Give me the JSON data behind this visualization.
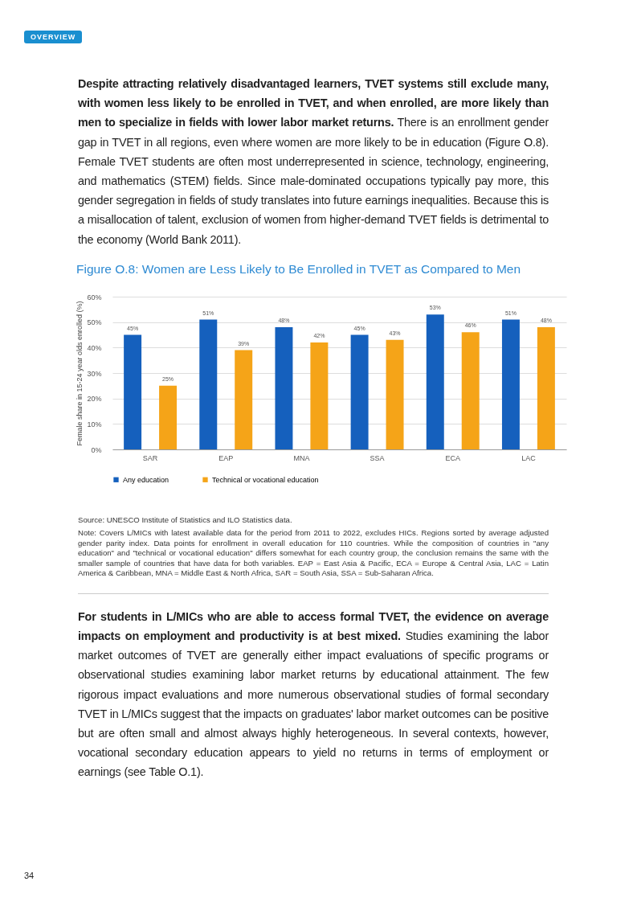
{
  "chart_data": {
    "type": "bar",
    "title": "Figure O.8: Women are Less Likely to Be Enrolled in TVET as Compared to Men",
    "ylabel": "Female share in 15-24 year olds enrolled (%)",
    "categories": [
      "SAR",
      "EAP",
      "MNA",
      "SSA",
      "ECA",
      "LAC"
    ],
    "series": [
      {
        "name": "Any education",
        "color": "#1560bd",
        "values": [
          45,
          51,
          48,
          45,
          53,
          51
        ],
        "value_labels": [
          "45%",
          "51%",
          "48%",
          "45%",
          "53%",
          "51%"
        ]
      },
      {
        "name": "Technical or vocational education",
        "color": "#f5a418",
        "values": [
          25,
          39,
          42,
          43,
          46,
          48
        ],
        "value_labels": [
          "25%",
          "39%",
          "42%",
          "43%",
          "46%",
          "48%"
        ]
      }
    ],
    "ylim": [
      0,
      60
    ],
    "yticks": [
      {
        "value": 0,
        "label": "0%"
      },
      {
        "value": 10,
        "label": "10%"
      },
      {
        "value": 20,
        "label": "20%"
      },
      {
        "value": 30,
        "label": "30%"
      },
      {
        "value": 40,
        "label": "40%"
      },
      {
        "value": 50,
        "label": "50%"
      },
      {
        "value": 60,
        "label": "60%"
      }
    ],
    "grid": "y",
    "legend": "bottom",
    "annotations": [
      "OVERVIEW",
      "Despite attracting relatively disadvantaged learners, TVET systems still exclude many, with women less likely to be enrolled in TVET, and when enrolled, are more likely than men to specialize in fields with lower labor market returns.",
      "There is an enrollment gender gap in TVET in all regions, even where women are more likely to be in education (Figure O.8). Female TVET students are often most underrepresented in science, technology, engineering, and mathematics (STEM) fields. Since male-dominated occupations typically pay more, this gender segregation in fields of study translates into future earnings inequalities. Because this is a misallocation of talent, exclusion of women from higher-demand TVET fields is detrimental to the economy (World Bank 2011).",
      "Source: UNESCO Institute of Statistics and ILO Statistics data.",
      "Note: Covers L/MICs with latest available data for the period from 2011 to 2022, excludes HICs. Regions sorted by average adjusted gender parity index. Data points for enrollment in overall education for 110 countries. While the composition of countries in \"any education\" and \"technical or vocational education\" differs somewhat for each country group, the conclusion remains the same with the smaller sample of countries that have data for both variables. EAP = East Asia & Pacific, ECA = Europe & Central Asia, LAC = Latin America & Caribbean, MNA = Middle East & North Africa, SAR = South Asia, SSA = Sub-Saharan Africa.",
      "For students in L/MICs who are able to access formal TVET, the evidence on average impacts on employment and productivity is at best mixed.",
      "Studies examining the labor market outcomes of TVET are generally either impact evaluations of specific programs or observational studies examining labor market returns by educational attainment. The few rigorous impact evaluations and more numerous observational studies of formal secondary TVET in L/MICs suggest that the impacts on graduates' labor market outcomes can be positive but are often small and almost always highly heterogeneous. In several contexts, however, vocational secondary education appears to yield no returns in terms of employment or earnings (see Table O.1).",
      "34"
    ]
  }
}
